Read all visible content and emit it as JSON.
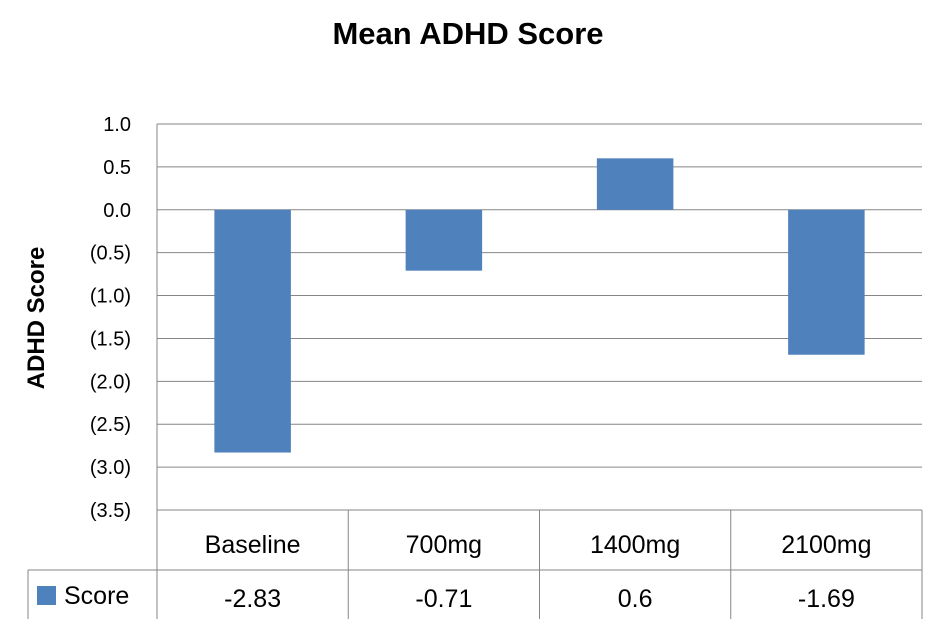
{
  "chart_data": {
    "type": "bar",
    "title": "Mean ADHD Score",
    "xlabel": "",
    "ylabel": "ADHD Score",
    "categories": [
      "Baseline",
      "700mg",
      "1400mg",
      "2100mg"
    ],
    "series": [
      {
        "name": "Score",
        "values": [
          -2.83,
          -0.71,
          0.6,
          -1.69
        ],
        "color": "#4f81bd"
      }
    ],
    "ylim": [
      -3.5,
      1.0
    ],
    "yticks": [
      {
        "value": 1.0,
        "label": "1.0"
      },
      {
        "value": 0.5,
        "label": "0.5"
      },
      {
        "value": 0.0,
        "label": "0.0"
      },
      {
        "value": -0.5,
        "label": "(0.5)"
      },
      {
        "value": -1.0,
        "label": "(1.0)"
      },
      {
        "value": -1.5,
        "label": "(1.5)"
      },
      {
        "value": -2.0,
        "label": "(2.0)"
      },
      {
        "value": -2.5,
        "label": "(2.5)"
      },
      {
        "value": -3.0,
        "label": "(3.0)"
      },
      {
        "value": -3.5,
        "label": "(3.5)"
      }
    ],
    "grid": true,
    "data_table": {
      "row_label": "Score",
      "values": [
        "-2.83",
        "-0.71",
        "0.6",
        "-1.69"
      ]
    }
  }
}
